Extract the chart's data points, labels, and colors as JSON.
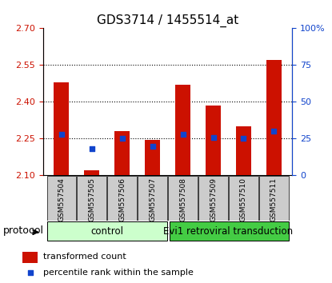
{
  "title": "GDS3714 / 1455514_at",
  "samples": [
    "GSM557504",
    "GSM557505",
    "GSM557506",
    "GSM557507",
    "GSM557508",
    "GSM557509",
    "GSM557510",
    "GSM557511"
  ],
  "red_bar_tops": [
    2.48,
    2.12,
    2.28,
    2.245,
    2.47,
    2.385,
    2.3,
    2.57
  ],
  "red_bar_bottom": 2.1,
  "blue_values": [
    28,
    18,
    25,
    20,
    28,
    26,
    25,
    30
  ],
  "ylim_left": [
    2.1,
    2.7
  ],
  "ylim_right": [
    0,
    100
  ],
  "yticks_left": [
    2.1,
    2.25,
    2.4,
    2.55,
    2.7
  ],
  "yticks_right": [
    0,
    25,
    50,
    75,
    100
  ],
  "grid_vals": [
    2.25,
    2.4,
    2.55
  ],
  "bar_color": "#cc1100",
  "blue_color": "#1144cc",
  "bar_width": 0.5,
  "control_samples": 4,
  "control_label": "control",
  "treatment_label": "Evi1 retroviral transduction",
  "protocol_label": "protocol",
  "legend_red": "transformed count",
  "legend_blue": "percentile rank within the sample",
  "control_bg": "#ccffcc",
  "treatment_bg": "#44cc44",
  "xlabel_bg": "#cccccc",
  "title_fontsize": 11,
  "tick_fontsize": 8,
  "annotation_fontsize": 9
}
